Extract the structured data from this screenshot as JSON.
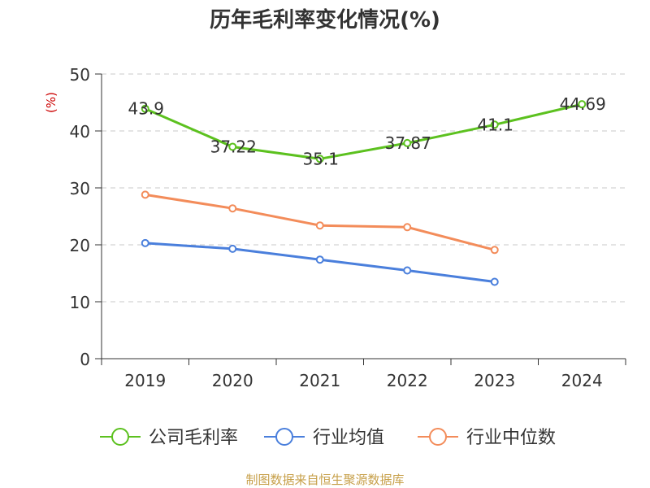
{
  "chart_data": {
    "type": "line",
    "title": "历年毛利率变化情况(%)",
    "ylabel": "(%)",
    "xlabel": "",
    "categories": [
      "2019",
      "2020",
      "2021",
      "2022",
      "2023",
      "2024"
    ],
    "ylim": [
      0,
      50
    ],
    "yticks": [
      0,
      10,
      20,
      30,
      40,
      50
    ],
    "grid": true,
    "legend_position": "bottom",
    "series": [
      {
        "name": "公司毛利率",
        "color": "#5cc11f",
        "values": [
          43.9,
          37.22,
          35.1,
          37.87,
          41.1,
          44.69
        ],
        "data_labels": [
          "43.9",
          "37.22",
          "35.1",
          "37.87",
          "41.1",
          "44.69"
        ]
      },
      {
        "name": "行业均值",
        "color": "#4a7fdc",
        "values": [
          20.3,
          19.3,
          17.4,
          15.5,
          13.5,
          null
        ]
      },
      {
        "name": "行业中位数",
        "color": "#f38c5a",
        "values": [
          28.8,
          26.4,
          23.4,
          23.1,
          19.1,
          null
        ]
      }
    ]
  },
  "source": "制图数据来自恒生聚源数据库"
}
